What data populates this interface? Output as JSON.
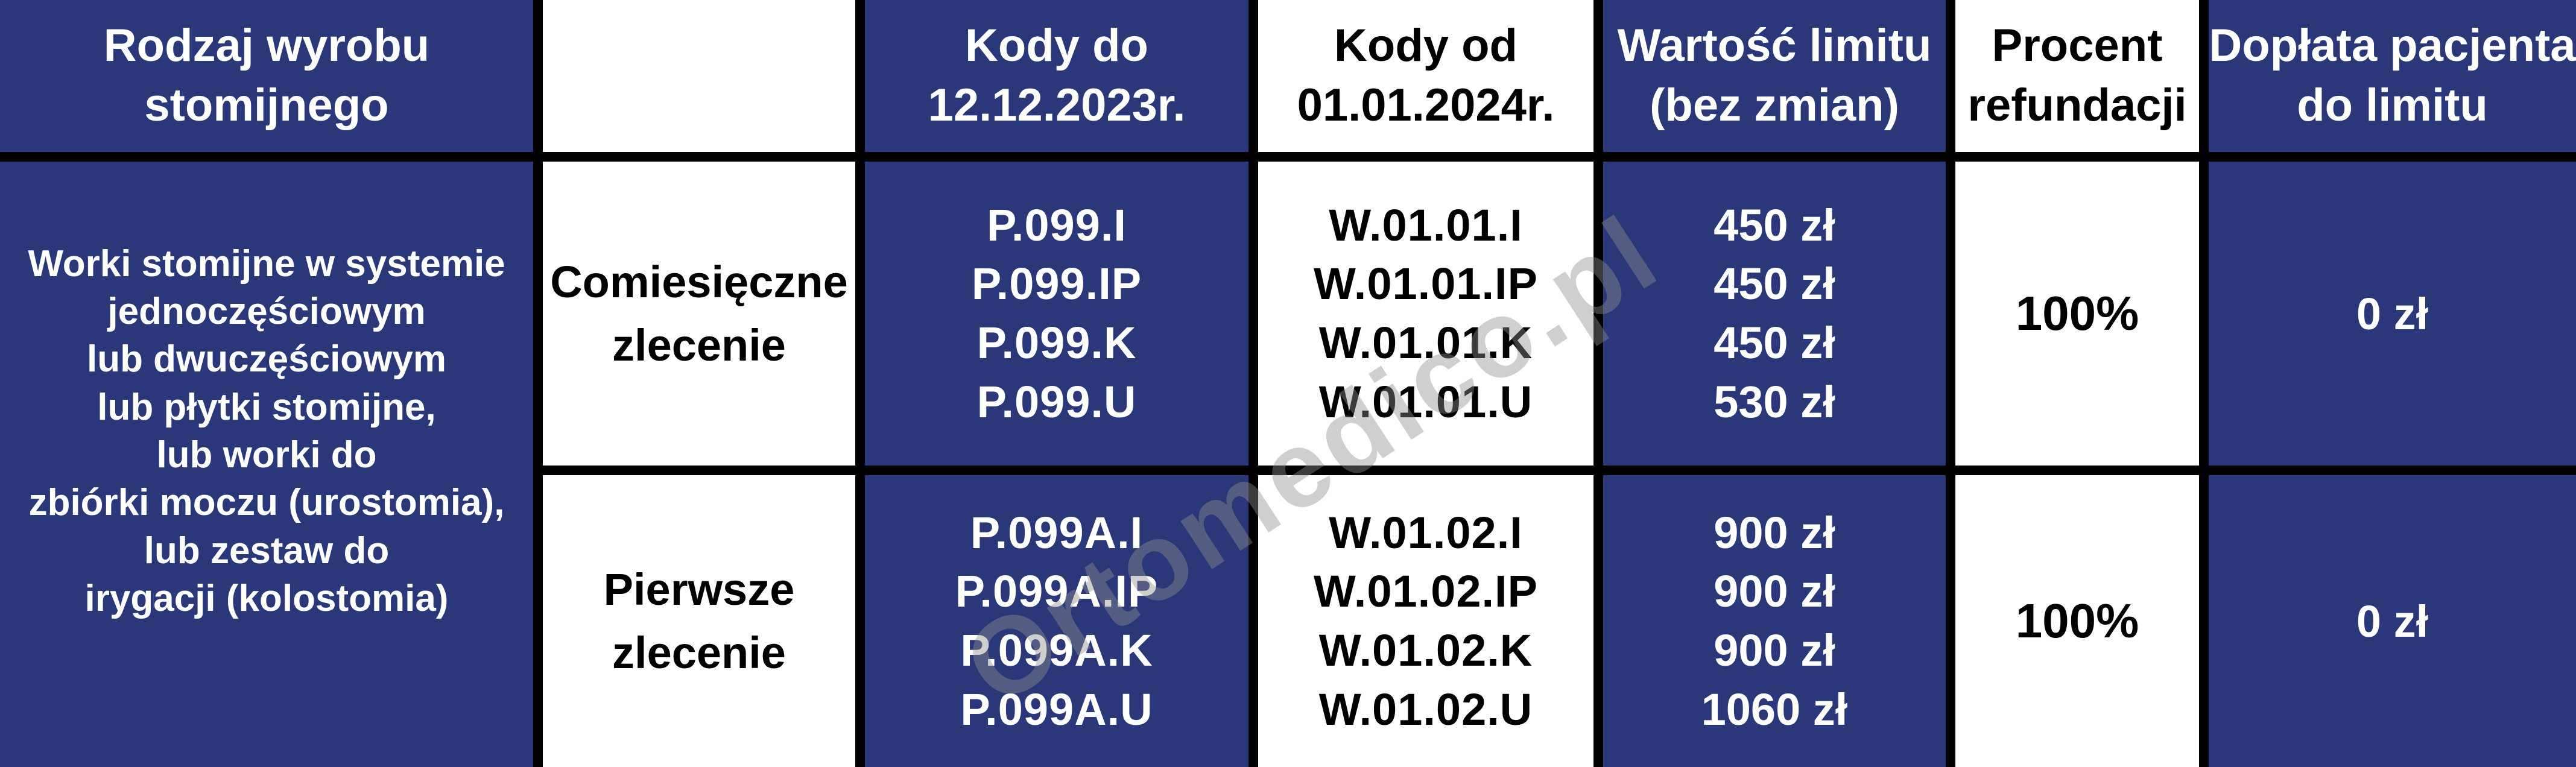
{
  "colors": {
    "navy": "#2a3779",
    "border_black": "#000000",
    "cell_white": "#ffffff",
    "watermark_gray": "#8f8f8f"
  },
  "watermark": {
    "text": "Ortomedico.pl"
  },
  "table": {
    "columns": [
      {
        "id": "rodzaj",
        "lines": [
          "Rodzaj wyrobu",
          "stomijnego"
        ]
      },
      {
        "id": "zlecenie",
        "lines": [
          "",
          ""
        ]
      },
      {
        "id": "kody_do",
        "lines": [
          "Kody do",
          "12.12.2023r."
        ]
      },
      {
        "id": "kody_od",
        "lines": [
          "Kody od",
          "01.01.2024r."
        ]
      },
      {
        "id": "limit",
        "lines": [
          "Wartość limitu",
          "(bez zmian)"
        ]
      },
      {
        "id": "procent",
        "lines": [
          "Procent",
          "refundacji"
        ]
      },
      {
        "id": "doplata",
        "lines": [
          "Dopłata pacjenta",
          "do limitu"
        ]
      }
    ],
    "product": {
      "lines": [
        "Worki stomijne w systemie",
        "jednoczęściowym",
        "lub dwuczęściowym",
        "lub płytki stomijne,",
        "lub worki do",
        "zbiórki moczu (urostomia),",
        "lub zestaw do",
        "irygacji (kolostomia)"
      ]
    },
    "rows": [
      {
        "zlecenie": [
          "Comiesięczne",
          "zlecenie"
        ],
        "kody_do": [
          "P.099.I",
          "P.099.IP",
          "P.099.K",
          "P.099.U"
        ],
        "kody_od": [
          "W.01.01.I",
          "W.01.01.IP",
          "W.01.01.K",
          "W.01.01.U"
        ],
        "limit": [
          "450 zł",
          "450 zł",
          "450 zł",
          "530 zł"
        ],
        "procent": "100%",
        "doplata": "0 zł"
      },
      {
        "zlecenie": [
          "Pierwsze",
          "zlecenie"
        ],
        "kody_do": [
          "P.099A.I",
          "P.099A.IP",
          "P.099A.K",
          "P.099A.U"
        ],
        "kody_od": [
          "W.01.02.I",
          "W.01.02.IP",
          "W.01.02.K",
          "W.01.02.U"
        ],
        "limit": [
          "900 zł",
          "900 zł",
          "900 zł",
          "1060 zł"
        ],
        "procent": "100%",
        "doplata": "0 zł"
      }
    ]
  }
}
